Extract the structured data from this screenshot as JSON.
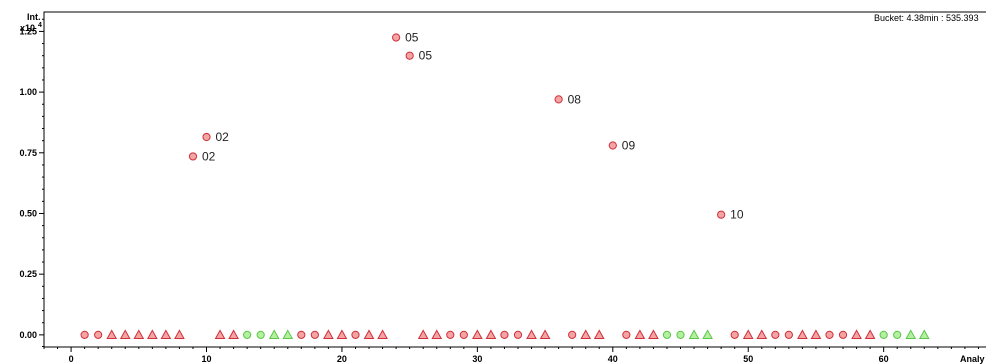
{
  "chart_data": {
    "type": "scatter",
    "title": "Bucket: 4.38min : 535.393",
    "ylabel": "Int.",
    "yscale_label": "x10",
    "yscale_exp": "4",
    "xlabel": "Analy",
    "xlim": [
      -2,
      68
    ],
    "ylim": [
      -0.05,
      1.33
    ],
    "x_ticks": [
      0,
      10,
      20,
      30,
      40,
      50,
      60
    ],
    "y_ticks": [
      {
        "v": 0.0,
        "label": "0.00"
      },
      {
        "v": 0.25,
        "label": "0.25"
      },
      {
        "v": 0.5,
        "label": "0.50"
      },
      {
        "v": 0.75,
        "label": "0.75"
      },
      {
        "v": 1.0,
        "label": "1.00"
      },
      {
        "v": 1.25,
        "label": "1.25"
      }
    ],
    "colors": {
      "red_fill": "#f4a4a4",
      "red_stroke": "#d0303a",
      "green_fill": "#b4f0a0",
      "green_stroke": "#5cc64a"
    },
    "points": [
      {
        "x": 9,
        "y": 0.735,
        "shape": "circle",
        "color": "red",
        "label": "02"
      },
      {
        "x": 10,
        "y": 0.815,
        "shape": "circle",
        "color": "red",
        "label": "02"
      },
      {
        "x": 24,
        "y": 1.225,
        "shape": "circle",
        "color": "red",
        "label": "05"
      },
      {
        "x": 25,
        "y": 1.15,
        "shape": "circle",
        "color": "red",
        "label": "05"
      },
      {
        "x": 36,
        "y": 0.97,
        "shape": "circle",
        "color": "red",
        "label": "08"
      },
      {
        "x": 40,
        "y": 0.78,
        "shape": "circle",
        "color": "red",
        "label": "09"
      },
      {
        "x": 48,
        "y": 0.495,
        "shape": "circle",
        "color": "red",
        "label": "10"
      },
      {
        "x": 1,
        "y": 0,
        "shape": "circle",
        "color": "red"
      },
      {
        "x": 2,
        "y": 0,
        "shape": "circle",
        "color": "red"
      },
      {
        "x": 3,
        "y": 0,
        "shape": "triangle",
        "color": "red"
      },
      {
        "x": 4,
        "y": 0,
        "shape": "triangle",
        "color": "red"
      },
      {
        "x": 5,
        "y": 0,
        "shape": "triangle",
        "color": "red"
      },
      {
        "x": 6,
        "y": 0,
        "shape": "triangle",
        "color": "red"
      },
      {
        "x": 7,
        "y": 0,
        "shape": "triangle",
        "color": "red"
      },
      {
        "x": 8,
        "y": 0,
        "shape": "triangle",
        "color": "red"
      },
      {
        "x": 11,
        "y": 0,
        "shape": "triangle",
        "color": "red"
      },
      {
        "x": 12,
        "y": 0,
        "shape": "triangle",
        "color": "red"
      },
      {
        "x": 13,
        "y": 0,
        "shape": "circle",
        "color": "green"
      },
      {
        "x": 14,
        "y": 0,
        "shape": "circle",
        "color": "green"
      },
      {
        "x": 15,
        "y": 0,
        "shape": "triangle",
        "color": "green"
      },
      {
        "x": 16,
        "y": 0,
        "shape": "triangle",
        "color": "green"
      },
      {
        "x": 17,
        "y": 0,
        "shape": "circle",
        "color": "red"
      },
      {
        "x": 18,
        "y": 0,
        "shape": "circle",
        "color": "red"
      },
      {
        "x": 19,
        "y": 0,
        "shape": "triangle",
        "color": "red"
      },
      {
        "x": 20,
        "y": 0,
        "shape": "triangle",
        "color": "red"
      },
      {
        "x": 21,
        "y": 0,
        "shape": "circle",
        "color": "red"
      },
      {
        "x": 22,
        "y": 0,
        "shape": "triangle",
        "color": "red"
      },
      {
        "x": 23,
        "y": 0,
        "shape": "triangle",
        "color": "red"
      },
      {
        "x": 26,
        "y": 0,
        "shape": "triangle",
        "color": "red"
      },
      {
        "x": 27,
        "y": 0,
        "shape": "triangle",
        "color": "red"
      },
      {
        "x": 28,
        "y": 0,
        "shape": "circle",
        "color": "red"
      },
      {
        "x": 29,
        "y": 0,
        "shape": "circle",
        "color": "red"
      },
      {
        "x": 30,
        "y": 0,
        "shape": "triangle",
        "color": "red"
      },
      {
        "x": 31,
        "y": 0,
        "shape": "triangle",
        "color": "red"
      },
      {
        "x": 32,
        "y": 0,
        "shape": "circle",
        "color": "red"
      },
      {
        "x": 33,
        "y": 0,
        "shape": "circle",
        "color": "red"
      },
      {
        "x": 34,
        "y": 0,
        "shape": "triangle",
        "color": "red"
      },
      {
        "x": 35,
        "y": 0,
        "shape": "triangle",
        "color": "red"
      },
      {
        "x": 37,
        "y": 0,
        "shape": "circle",
        "color": "red"
      },
      {
        "x": 38,
        "y": 0,
        "shape": "triangle",
        "color": "red"
      },
      {
        "x": 39,
        "y": 0,
        "shape": "triangle",
        "color": "red"
      },
      {
        "x": 41,
        "y": 0,
        "shape": "circle",
        "color": "red"
      },
      {
        "x": 42,
        "y": 0,
        "shape": "triangle",
        "color": "red"
      },
      {
        "x": 43,
        "y": 0,
        "shape": "triangle",
        "color": "red"
      },
      {
        "x": 44,
        "y": 0,
        "shape": "circle",
        "color": "green"
      },
      {
        "x": 45,
        "y": 0,
        "shape": "circle",
        "color": "green"
      },
      {
        "x": 46,
        "y": 0,
        "shape": "triangle",
        "color": "green"
      },
      {
        "x": 47,
        "y": 0,
        "shape": "triangle",
        "color": "green"
      },
      {
        "x": 49,
        "y": 0,
        "shape": "circle",
        "color": "red"
      },
      {
        "x": 50,
        "y": 0,
        "shape": "triangle",
        "color": "red"
      },
      {
        "x": 51,
        "y": 0,
        "shape": "triangle",
        "color": "red"
      },
      {
        "x": 52,
        "y": 0,
        "shape": "circle",
        "color": "red"
      },
      {
        "x": 53,
        "y": 0,
        "shape": "circle",
        "color": "red"
      },
      {
        "x": 54,
        "y": 0,
        "shape": "triangle",
        "color": "red"
      },
      {
        "x": 55,
        "y": 0,
        "shape": "triangle",
        "color": "red"
      },
      {
        "x": 56,
        "y": 0,
        "shape": "circle",
        "color": "red"
      },
      {
        "x": 57,
        "y": 0,
        "shape": "circle",
        "color": "red"
      },
      {
        "x": 58,
        "y": 0,
        "shape": "triangle",
        "color": "red"
      },
      {
        "x": 59,
        "y": 0,
        "shape": "triangle",
        "color": "red"
      },
      {
        "x": 60,
        "y": 0,
        "shape": "circle",
        "color": "green"
      },
      {
        "x": 61,
        "y": 0,
        "shape": "circle",
        "color": "green"
      },
      {
        "x": 62,
        "y": 0,
        "shape": "triangle",
        "color": "green"
      },
      {
        "x": 63,
        "y": 0,
        "shape": "triangle",
        "color": "green"
      }
    ]
  }
}
